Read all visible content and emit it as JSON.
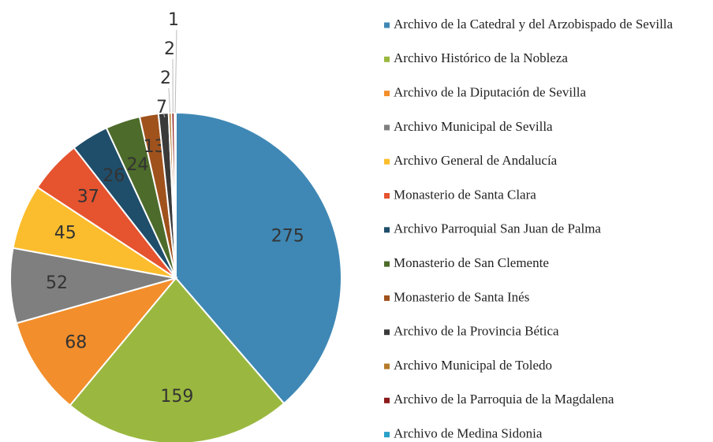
{
  "chart_data": {
    "type": "pie",
    "categories": [
      "Archivo de la Catedral y del Arzobispado de Sevilla",
      "Archivo Histórico de la Nobleza",
      "Archivo de la Diputación de Sevilla",
      "Archivo Municipal de Sevilla",
      "Archivo General de Andalucía",
      "Monasterio de Santa Clara",
      "Archivo Parroquial San Juan de Palma",
      "Monasterio de San Clemente",
      "Monasterio de Santa Inés",
      "Archivo de la Provincia Bética",
      "Archivo Municipal de Toledo",
      "Archivo de la Parroquia de la Magdalena",
      "Archivo de Medina Sidonia"
    ],
    "values": [
      275,
      159,
      68,
      52,
      45,
      37,
      26,
      24,
      13,
      7,
      2,
      2,
      1
    ],
    "colors": [
      "#3f88b5",
      "#9ab83f",
      "#f28e2b",
      "#7f7f7f",
      "#fbbd2d",
      "#e5532f",
      "#1f4e6b",
      "#4d6b2a",
      "#a0521d",
      "#3a3a3a",
      "#b57a2a",
      "#8b1a1a",
      "#2aa0c8"
    ],
    "legend": "right"
  }
}
